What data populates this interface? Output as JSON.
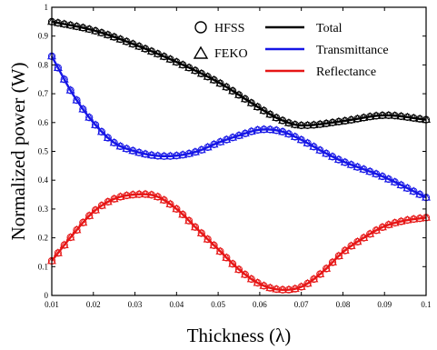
{
  "chart_data": {
    "type": "line",
    "xlabel": "Thickness (λ)",
    "ylabel": "Normalized power (W)",
    "xlim": [
      0.01,
      0.1
    ],
    "ylim": [
      0,
      1
    ],
    "xticks": [
      "0.01",
      "0.02",
      "0.03",
      "0.04",
      "0.05",
      "0.06",
      "0.07",
      "0.08",
      "0.09",
      "0.1"
    ],
    "yticks": [
      "0",
      "0.1",
      "0.2",
      "0.3",
      "0.4",
      "0.5",
      "0.6",
      "0.7",
      "0.8",
      "0.9",
      "1"
    ],
    "grid": false,
    "legend_methods": [
      {
        "label": "HFSS",
        "marker": "circle"
      },
      {
        "label": "FEKO",
        "marker": "triangle"
      }
    ],
    "legend_position": "top-right",
    "series": [
      {
        "name": "Total",
        "color": "#000000",
        "x": [
          0.01,
          0.02,
          0.03,
          0.04,
          0.05,
          0.06,
          0.065,
          0.07,
          0.08,
          0.09,
          0.1
        ],
        "y": [
          0.95,
          0.92,
          0.87,
          0.81,
          0.74,
          0.65,
          0.61,
          0.59,
          0.605,
          0.625,
          0.61
        ]
      },
      {
        "name": "Transmittance",
        "color": "#1616e6",
        "x": [
          0.01,
          0.015,
          0.02,
          0.025,
          0.03,
          0.035,
          0.04,
          0.045,
          0.05,
          0.055,
          0.06,
          0.065,
          0.07,
          0.075,
          0.08,
          0.09,
          0.1
        ],
        "y": [
          0.83,
          0.7,
          0.6,
          0.53,
          0.5,
          0.485,
          0.485,
          0.5,
          0.53,
          0.555,
          0.575,
          0.57,
          0.54,
          0.5,
          0.465,
          0.41,
          0.34
        ]
      },
      {
        "name": "Reflectance",
        "color": "#e61616",
        "x": [
          0.01,
          0.015,
          0.02,
          0.025,
          0.03,
          0.035,
          0.04,
          0.045,
          0.05,
          0.055,
          0.06,
          0.065,
          0.07,
          0.075,
          0.08,
          0.085,
          0.09,
          0.095,
          0.1
        ],
        "y": [
          0.12,
          0.21,
          0.29,
          0.335,
          0.35,
          0.345,
          0.3,
          0.23,
          0.16,
          0.09,
          0.04,
          0.02,
          0.03,
          0.08,
          0.15,
          0.2,
          0.24,
          0.26,
          0.27
        ]
      }
    ]
  }
}
